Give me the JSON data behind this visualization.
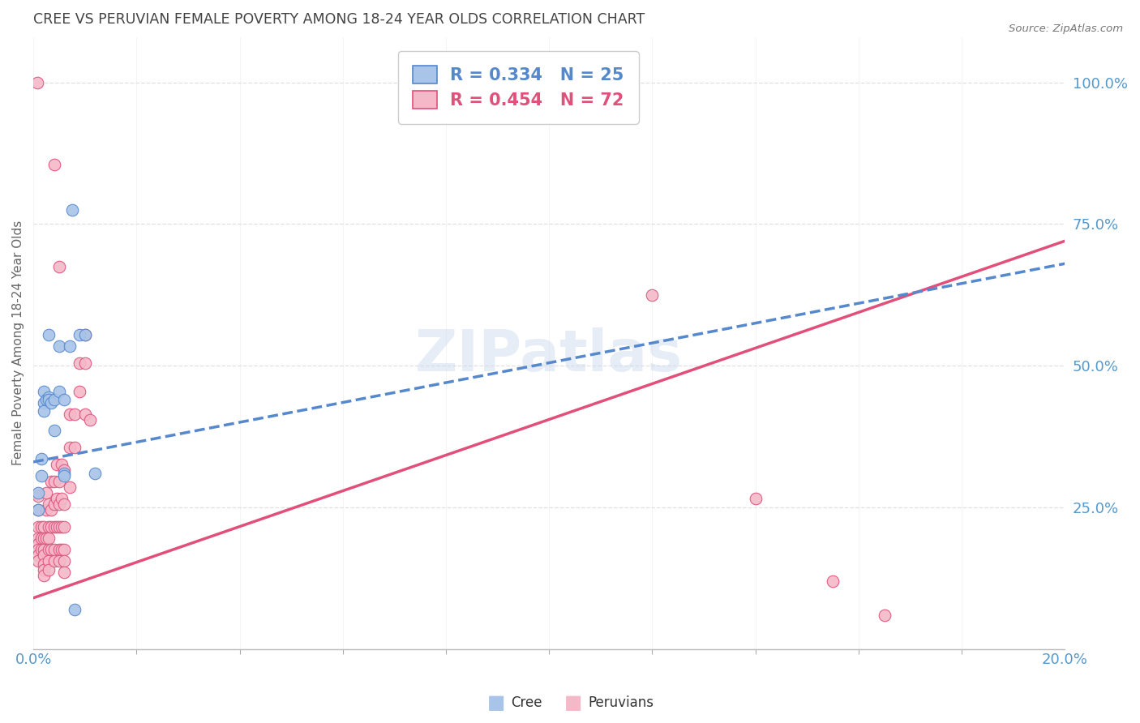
{
  "title": "CREE VS PERUVIAN FEMALE POVERTY AMONG 18-24 YEAR OLDS CORRELATION CHART",
  "source": "Source: ZipAtlas.com",
  "ylabel": "Female Poverty Among 18-24 Year Olds",
  "watermark": "ZIPatlas",
  "cree_R": 0.334,
  "cree_N": 25,
  "peruvian_R": 0.454,
  "peruvian_N": 72,
  "cree_color": "#a8c4e8",
  "peruvian_color": "#f5b8c8",
  "cree_line_color": "#5588cc",
  "peruvian_line_color": "#e0507a",
  "background_color": "#ffffff",
  "grid_color": "#e0e0e0",
  "title_color": "#444444",
  "axis_label_color": "#5599cc",
  "xmin": 0.0,
  "xmax": 0.2,
  "ymin": 0.0,
  "ymax": 1.08,
  "cree_points": [
    [
      0.001,
      0.275
    ],
    [
      0.001,
      0.245
    ],
    [
      0.0015,
      0.335
    ],
    [
      0.0015,
      0.305
    ],
    [
      0.002,
      0.455
    ],
    [
      0.002,
      0.435
    ],
    [
      0.002,
      0.42
    ],
    [
      0.0025,
      0.44
    ],
    [
      0.003,
      0.555
    ],
    [
      0.003,
      0.445
    ],
    [
      0.003,
      0.44
    ],
    [
      0.0035,
      0.435
    ],
    [
      0.004,
      0.44
    ],
    [
      0.004,
      0.385
    ],
    [
      0.005,
      0.535
    ],
    [
      0.005,
      0.455
    ],
    [
      0.006,
      0.44
    ],
    [
      0.006,
      0.31
    ],
    [
      0.006,
      0.305
    ],
    [
      0.007,
      0.535
    ],
    [
      0.0075,
      0.775
    ],
    [
      0.009,
      0.555
    ],
    [
      0.01,
      0.555
    ],
    [
      0.012,
      0.31
    ],
    [
      0.008,
      0.07
    ]
  ],
  "peruvian_points": [
    [
      0.0008,
      1.0
    ],
    [
      0.001,
      0.27
    ],
    [
      0.001,
      0.245
    ],
    [
      0.001,
      0.215
    ],
    [
      0.001,
      0.195
    ],
    [
      0.001,
      0.185
    ],
    [
      0.001,
      0.175
    ],
    [
      0.001,
      0.165
    ],
    [
      0.001,
      0.155
    ],
    [
      0.0015,
      0.215
    ],
    [
      0.0015,
      0.195
    ],
    [
      0.0015,
      0.175
    ],
    [
      0.002,
      0.215
    ],
    [
      0.002,
      0.195
    ],
    [
      0.002,
      0.175
    ],
    [
      0.002,
      0.165
    ],
    [
      0.002,
      0.15
    ],
    [
      0.002,
      0.14
    ],
    [
      0.002,
      0.13
    ],
    [
      0.0025,
      0.275
    ],
    [
      0.0025,
      0.245
    ],
    [
      0.0025,
      0.195
    ],
    [
      0.003,
      0.255
    ],
    [
      0.003,
      0.215
    ],
    [
      0.003,
      0.195
    ],
    [
      0.003,
      0.175
    ],
    [
      0.003,
      0.155
    ],
    [
      0.003,
      0.14
    ],
    [
      0.0035,
      0.295
    ],
    [
      0.0035,
      0.245
    ],
    [
      0.0035,
      0.215
    ],
    [
      0.0035,
      0.175
    ],
    [
      0.004,
      0.855
    ],
    [
      0.004,
      0.295
    ],
    [
      0.004,
      0.255
    ],
    [
      0.004,
      0.215
    ],
    [
      0.004,
      0.175
    ],
    [
      0.004,
      0.155
    ],
    [
      0.0045,
      0.325
    ],
    [
      0.0045,
      0.265
    ],
    [
      0.0045,
      0.215
    ],
    [
      0.005,
      0.675
    ],
    [
      0.005,
      0.295
    ],
    [
      0.005,
      0.255
    ],
    [
      0.005,
      0.215
    ],
    [
      0.005,
      0.175
    ],
    [
      0.005,
      0.155
    ],
    [
      0.0055,
      0.325
    ],
    [
      0.0055,
      0.265
    ],
    [
      0.0055,
      0.215
    ],
    [
      0.0055,
      0.175
    ],
    [
      0.006,
      0.315
    ],
    [
      0.006,
      0.255
    ],
    [
      0.006,
      0.215
    ],
    [
      0.006,
      0.175
    ],
    [
      0.006,
      0.155
    ],
    [
      0.006,
      0.135
    ],
    [
      0.007,
      0.415
    ],
    [
      0.007,
      0.355
    ],
    [
      0.007,
      0.285
    ],
    [
      0.008,
      0.415
    ],
    [
      0.008,
      0.355
    ],
    [
      0.009,
      0.505
    ],
    [
      0.009,
      0.455
    ],
    [
      0.01,
      0.505
    ],
    [
      0.01,
      0.555
    ],
    [
      0.01,
      0.415
    ],
    [
      0.011,
      0.405
    ],
    [
      0.12,
      0.625
    ],
    [
      0.14,
      0.265
    ],
    [
      0.155,
      0.12
    ],
    [
      0.165,
      0.06
    ]
  ],
  "cree_trendline": [
    0.0,
    0.33,
    0.2,
    0.68
  ],
  "peruvian_trendline": [
    0.0,
    0.09,
    0.2,
    0.72
  ]
}
